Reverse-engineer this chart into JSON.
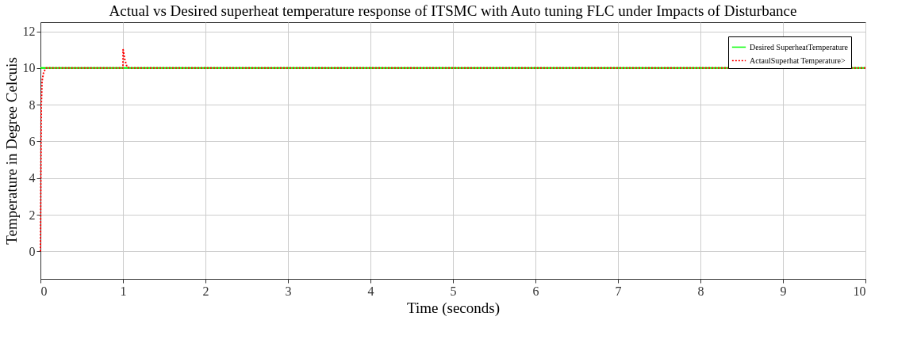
{
  "chart_data": {
    "type": "line",
    "title": "Actual vs Desired superheat temperature  response  of ITSMC with Auto tuning FLC under Impacts  of Disturbance",
    "xlabel": "Time (seconds)",
    "ylabel": "Temperature in Degree Celcuis",
    "xlim": [
      0,
      10
    ],
    "ylim": [
      -1.5,
      12.5
    ],
    "xticks": [
      0,
      1,
      2,
      3,
      4,
      5,
      6,
      7,
      8,
      9,
      10
    ],
    "yticks": [
      0,
      2,
      4,
      6,
      8,
      10,
      12
    ],
    "grid": true,
    "legend": "top right",
    "series": [
      {
        "name": "Desired SuperheatTemperature",
        "color": "#00ff00",
        "line_style": "solid",
        "x": [
          0,
          10
        ],
        "values": [
          10,
          10
        ]
      },
      {
        "name": "ActaulSuperhat Temperature>",
        "color": "#ff0000",
        "line_style": "dotted",
        "x": [
          0,
          0.005,
          0.01,
          0.02,
          0.04,
          0.07,
          1,
          1.002,
          1.02,
          1.05,
          1.08,
          10
        ],
        "values": [
          0,
          4,
          8,
          9.3,
          9.8,
          10,
          10,
          11,
          10.5,
          10.05,
          10,
          10
        ]
      }
    ]
  }
}
